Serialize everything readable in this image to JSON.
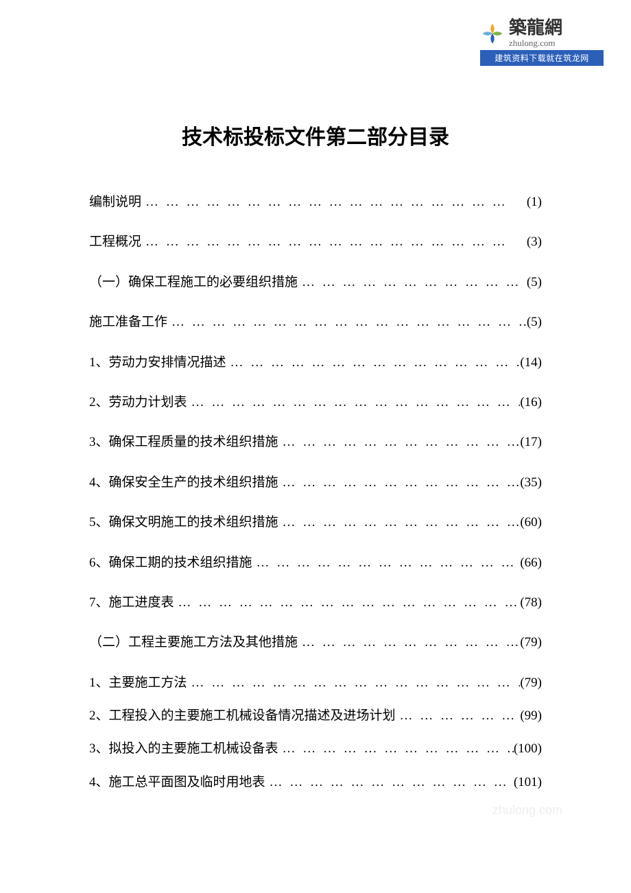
{
  "logo": {
    "brand_cn": "築龍網",
    "brand_en": "zhulong.com",
    "tagline": "建筑资料下载就在筑龙网",
    "leaf_colors": {
      "top": "#f5a623",
      "right": "#7cb342",
      "bottom": "#2b5fb8",
      "left": "#6aaedb"
    }
  },
  "title": "技术标投标文件第二部分目录",
  "toc": [
    {
      "label": "编制说明",
      "page": "(1)",
      "compact": false
    },
    {
      "label": "工程概况",
      "page": "(3)",
      "compact": false
    },
    {
      "label": "（一）确保工程施工的必要组织措施",
      "page": "(5)",
      "compact": false
    },
    {
      "label": "施工准备工作",
      "page": "(5)",
      "compact": false
    },
    {
      "label": "1、劳动力安排情况描述",
      "page": "(14)",
      "compact": false
    },
    {
      "label": "2、劳动力计划表",
      "page": "(16)",
      "compact": false
    },
    {
      "label": "3、确保工程质量的技术组织措施",
      "page": "(17)",
      "compact": false
    },
    {
      "label": "4、确保安全生产的技术组织措施",
      "page": "(35)",
      "compact": false
    },
    {
      "label": "5、确保文明施工的技术组织措施",
      "page": "(60)",
      "compact": false
    },
    {
      "label": "6、确保工期的技术组织措施",
      "page": "(66)",
      "compact": false
    },
    {
      "label": "7、施工进度表",
      "page": "(78)",
      "compact": false
    },
    {
      "label": "（二）工程主要施工方法及其他措施",
      "page": "(79)",
      "compact": false
    },
    {
      "label": "1、主要施工方法",
      "page": "(79)",
      "compact": true
    },
    {
      "label": "2、工程投入的主要施工机械设备情况描述及进场计划",
      "page": "(99)",
      "compact": true
    },
    {
      "label": "3、拟投入的主要施工机械设备表",
      "page": "(100)",
      "compact": true
    },
    {
      "label": "4、施工总平面图及临时用地表",
      "page": "(101)",
      "compact": true
    }
  ],
  "watermark": "zhulong.com",
  "colors": {
    "text": "#000000",
    "background": "#ffffff",
    "logo_bar": "#2b5fb8",
    "watermark": "#eeeeee"
  },
  "typography": {
    "title_fontsize": 30,
    "toc_fontsize": 19,
    "logo_cn_fontsize": 26,
    "logo_en_fontsize": 13,
    "tagline_fontsize": 12
  }
}
